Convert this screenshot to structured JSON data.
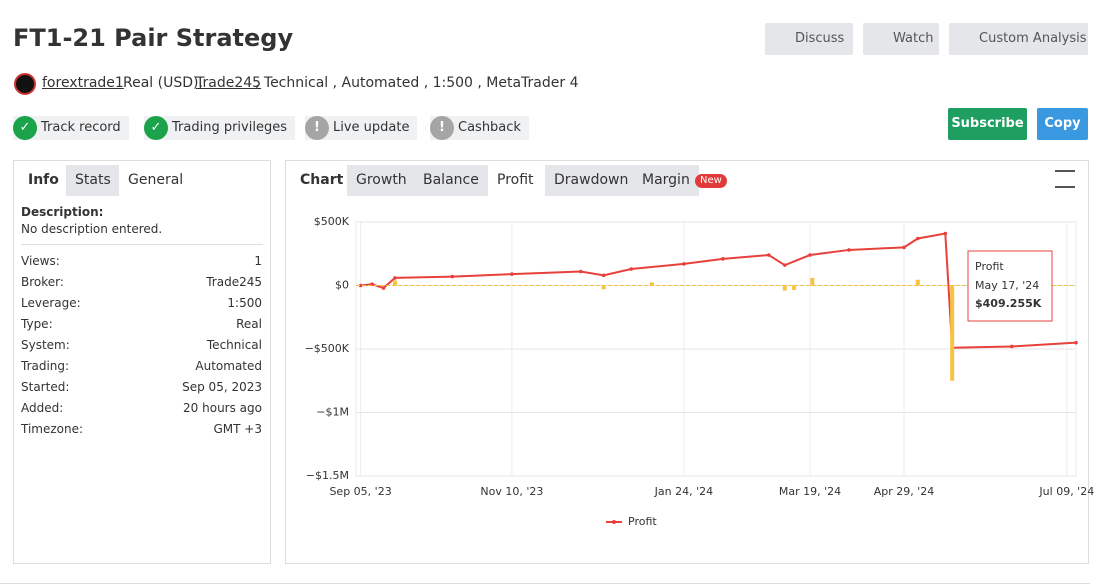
{
  "header": {
    "title": "FT1-21 Pair Strategy",
    "buttons": [
      "Discuss",
      "Watch",
      "Custom Analysis"
    ]
  },
  "account": {
    "user": "forextrade1",
    "type": "Real (USD),",
    "broker": "Trade245",
    "details": ", Technical , Automated , 1:500 , MetaTrader 4"
  },
  "badges": [
    {
      "label": "Track record",
      "status": "ok"
    },
    {
      "label": "Trading privileges",
      "status": "ok"
    },
    {
      "label": "Live update",
      "status": "warn"
    },
    {
      "label": "Cashback",
      "status": "warn"
    }
  ],
  "actions": [
    "Subscribe",
    "Copy"
  ],
  "info": {
    "tabs": [
      "Info",
      "Stats",
      "General"
    ],
    "active_tab": 2,
    "description_label": "Description:",
    "description": "No description entered.",
    "rows": [
      [
        "Views:",
        "1"
      ],
      [
        "Broker:",
        "Trade245"
      ],
      [
        "Leverage:",
        "1:500"
      ],
      [
        "Type:",
        "Real"
      ],
      [
        "System:",
        "Technical"
      ],
      [
        "Trading:",
        "Automated"
      ],
      [
        "Started:",
        "Sep 05, 2023"
      ],
      [
        "Added:",
        "20 hours ago"
      ],
      [
        "Timezone:",
        "GMT +3"
      ]
    ]
  },
  "chart_panel": {
    "tabs": [
      "Chart",
      "Growth",
      "Balance",
      "Profit",
      "Drawdown",
      "Margin"
    ],
    "active_tab": 3,
    "badge": "New"
  },
  "chart_data": {
    "type": "line",
    "xlim": [
      "2023-09-03",
      "2024-07-13"
    ],
    "xticks": [
      {
        "value": "2023-09-05",
        "label": "Sep 05, '23"
      },
      {
        "value": "2023-11-10",
        "label": "Nov 10, '23"
      },
      {
        "value": "2024-01-24",
        "label": "Jan 24, '24"
      },
      {
        "value": "2024-03-19",
        "label": "Mar 19, '24"
      },
      {
        "value": "2024-04-29",
        "label": "Apr 29, '24"
      },
      {
        "value": "2024-07-09",
        "label": "Jul 09, '24"
      }
    ],
    "ylim": [
      -1500000,
      500000
    ],
    "yticks": [
      {
        "value": 500000,
        "label": "$500K"
      },
      {
        "value": 0,
        "label": "$0"
      },
      {
        "value": -500000,
        "label": "−$500K"
      },
      {
        "value": -1000000,
        "label": "−$1M"
      },
      {
        "value": -1500000,
        "label": "−$1.5M"
      }
    ],
    "series": [
      {
        "name": "Profit",
        "color": "#e8413c",
        "x": [
          "2023-09-05",
          "2023-09-10",
          "2023-09-15",
          "2023-09-20",
          "2023-10-15",
          "2023-11-10",
          "2023-12-10",
          "2023-12-20",
          "2024-01-01",
          "2024-01-24",
          "2024-02-10",
          "2024-03-01",
          "2024-03-08",
          "2024-03-19",
          "2024-04-05",
          "2024-04-29",
          "2024-05-05",
          "2024-05-17",
          "2024-05-20",
          "2024-06-15",
          "2024-07-13"
        ],
        "values": [
          0,
          10000,
          -20000,
          60000,
          70000,
          90000,
          110000,
          80000,
          130000,
          170000,
          210000,
          240000,
          160000,
          240000,
          280000,
          300000,
          370000,
          409255,
          -490000,
          -480000,
          -450000
        ]
      },
      {
        "type": "bar",
        "color": "#f7c343",
        "x": [
          "2023-09-20",
          "2023-12-20",
          "2024-01-10",
          "2024-03-08",
          "2024-03-12",
          "2024-03-20",
          "2024-05-05",
          "2024-05-20"
        ],
        "values": [
          40000,
          -30000,
          25000,
          -40000,
          -35000,
          60000,
          45000,
          -750000
        ]
      }
    ],
    "tooltip": {
      "name": "Profit",
      "x": "May 17, '24",
      "value": "$409.255K"
    }
  }
}
